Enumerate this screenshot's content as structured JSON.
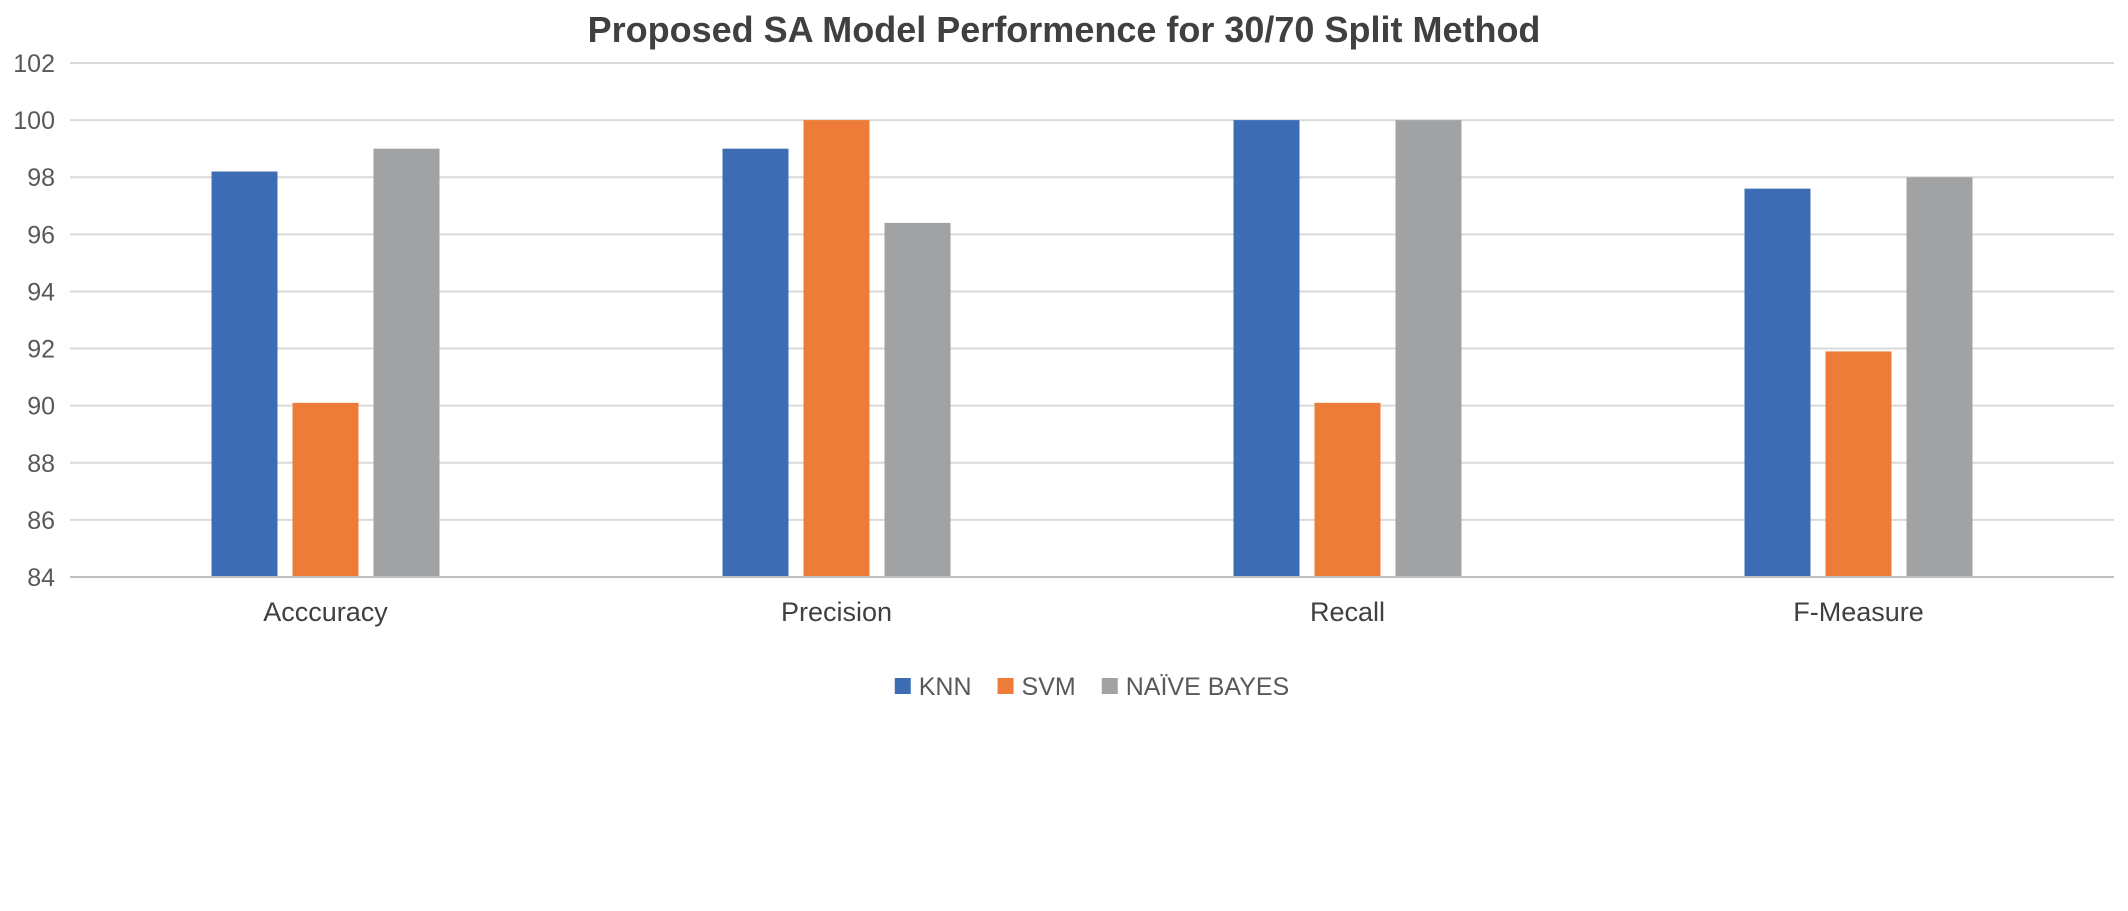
{
  "chart_data": {
    "type": "bar",
    "title": "Proposed SA Model Performence for 30/70 Split Method",
    "xlabel": "",
    "ylabel": "",
    "categories": [
      "Acccuracy",
      "Precision",
      "Recall",
      "F-Measure"
    ],
    "series": [
      {
        "name": "KNN",
        "color": "#3c6db4",
        "values": [
          98.2,
          99.0,
          100.0,
          97.6
        ]
      },
      {
        "name": "SVM",
        "color": "#ec7c38",
        "values": [
          90.1,
          100.0,
          90.1,
          91.9
        ]
      },
      {
        "name": "NAÏVE BAYES",
        "color": "#a0a2a3",
        "values": [
          99.0,
          96.4,
          100.0,
          98.0
        ]
      }
    ],
    "ylim": [
      84,
      102
    ],
    "yticks": [
      84,
      86,
      88,
      90,
      92,
      94,
      96,
      98,
      100,
      102
    ],
    "grid": true,
    "legend_position": "bottom-center"
  }
}
